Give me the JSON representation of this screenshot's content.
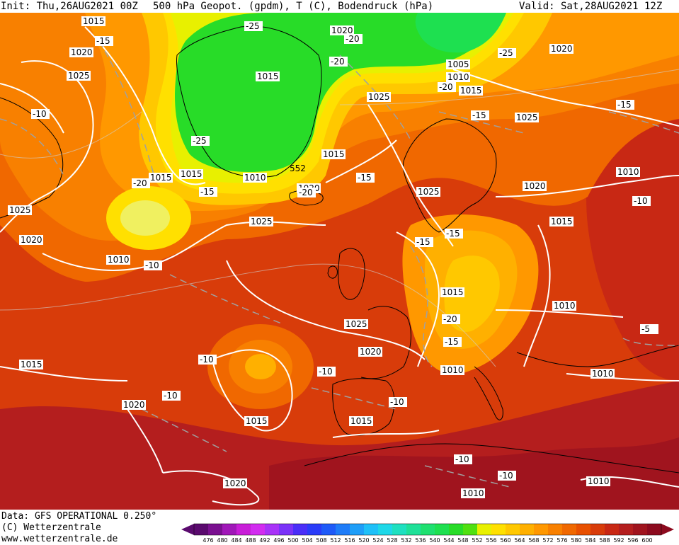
{
  "header": {
    "init": "Init: Thu,26AUG2021 00Z",
    "field": "500 hPa Geopot. (gpdm), T (C), Bodendruck (hPa)",
    "valid": "Valid: Sat,28AUG2021 12Z"
  },
  "footer": {
    "data_source": "Data: GFS OPERATIONAL 0.250°",
    "copyright": "(C) Wetterzentrale",
    "website": "www.wetterzentrale.de"
  },
  "legend": {
    "ticks": [
      "476",
      "480",
      "484",
      "488",
      "492",
      "496",
      "500",
      "504",
      "508",
      "512",
      "516",
      "520",
      "524",
      "528",
      "532",
      "536",
      "540",
      "544",
      "548",
      "552",
      "556",
      "560",
      "564",
      "568",
      "572",
      "576",
      "580",
      "584",
      "588",
      "592",
      "596",
      "600"
    ],
    "colors": [
      "#5a0a6e",
      "#7a1090",
      "#a018b8",
      "#c81ed8",
      "#d22cf0",
      "#a832f8",
      "#7a32f8",
      "#4a2ef8",
      "#2a3cf8",
      "#1e5af8",
      "#1e7cf8",
      "#1e9ef8",
      "#1ec0f8",
      "#1ed8e8",
      "#1ee0c0",
      "#1ee098",
      "#1ee070",
      "#1ee050",
      "#28dc28",
      "#50e010",
      "#e8f000",
      "#ffe000",
      "#ffc800",
      "#ffb000",
      "#ff9800",
      "#f88000",
      "#f06800",
      "#e85000",
      "#d83c0a",
      "#c82814",
      "#b41e1e",
      "#a0141e",
      "#8c0a1e"
    ]
  },
  "isobar_labels": [
    "1015",
    "1020",
    "1025",
    "1020",
    "1025",
    "1015",
    "1010",
    "1020",
    "1015",
    "1010",
    "1015",
    "1025",
    "1015",
    "1005",
    "1010",
    "1015",
    "1025",
    "1015",
    "1010",
    "1020",
    "1025",
    "1025",
    "1020",
    "1015",
    "1015",
    "1010",
    "1025",
    "1020",
    "1010",
    "1010",
    "1020",
    "1015",
    "1010",
    "1015",
    "1020",
    "1010",
    "1015",
    "1010",
    "1010",
    "1010",
    "1020",
    "552",
    "1020",
    "1015"
  ],
  "temperature_labels": [
    "-15",
    "-10",
    "-25",
    "-20",
    "-25",
    "-20",
    "-20",
    "-20",
    "-25",
    "-15",
    "-15",
    "-20",
    "-15",
    "-15",
    "-10",
    "-10",
    "-10",
    "-10",
    "-10",
    "-15",
    "-15",
    "-20",
    "-15",
    "-10",
    "-5",
    "-10",
    "-10",
    "-10",
    "-10"
  ]
}
